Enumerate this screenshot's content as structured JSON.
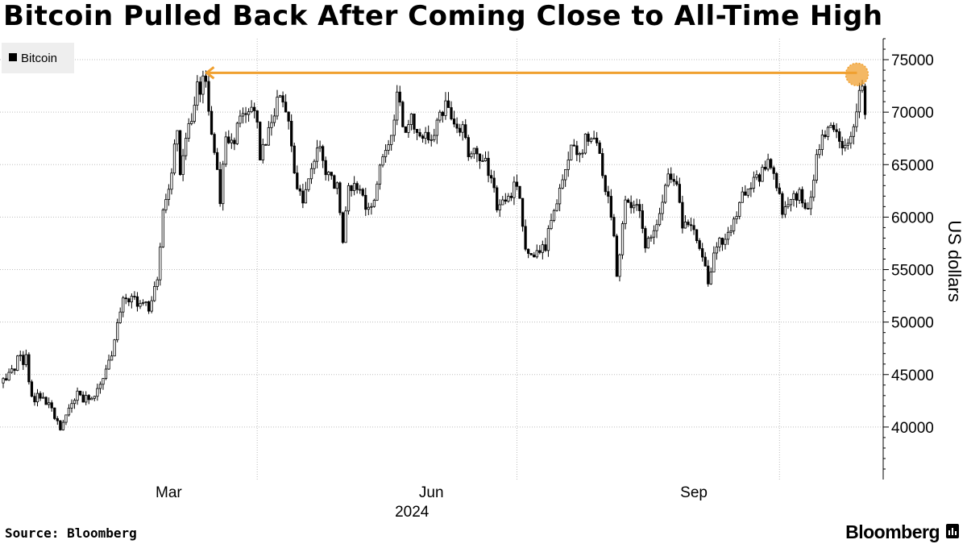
{
  "title": "Bitcoin Pulled Back After Coming Close to All-Time High",
  "source": "Source: Bloomberg",
  "brand": "Bloomberg",
  "colors": {
    "candle": "#000000",
    "annotation": "#f0a030",
    "grid": "#bdbdbd",
    "legend_bg": "#eeeeee"
  },
  "chart_data": {
    "type": "candlestick",
    "title": "Bitcoin Pulled Back After Coming Close to All-Time High",
    "legend": [
      "Bitcoin"
    ],
    "legend_position": "top-left",
    "ylabel": "US dollars",
    "y_axis_side": "right",
    "ylim": [
      35000,
      77000
    ],
    "yticks": [
      "40000",
      "45000",
      "50000",
      "55000",
      "60000",
      "65000",
      "70000",
      "75000"
    ],
    "x_start": "2024-01-03",
    "x_end": "2024-10-30",
    "xticks": [
      {
        "date": "2024-03-01",
        "label": "Mar"
      },
      {
        "date": "2024-06-01",
        "label": "Jun"
      },
      {
        "date": "2024-09-01",
        "label": "Sep"
      }
    ],
    "xgrid_dates": [
      "2024-04-01",
      "2024-07-01",
      "2024-10-01"
    ],
    "year_label": "2024",
    "grid": true,
    "series": [
      {
        "name": "Bitcoin",
        "points": [
          [
            "2024-01-03",
            44200
          ],
          [
            "2024-01-08",
            46300
          ],
          [
            "2024-01-11",
            46500
          ],
          [
            "2024-01-13",
            42800
          ],
          [
            "2024-01-17",
            42700
          ],
          [
            "2024-01-20",
            41700
          ],
          [
            "2024-01-23",
            39500
          ],
          [
            "2024-01-26",
            41800
          ],
          [
            "2024-01-29",
            43300
          ],
          [
            "2024-02-01",
            42600
          ],
          [
            "2024-02-04",
            42600
          ],
          [
            "2024-02-08",
            45300
          ],
          [
            "2024-02-10",
            47100
          ],
          [
            "2024-02-14",
            51800
          ],
          [
            "2024-02-18",
            52100
          ],
          [
            "2024-02-21",
            51300
          ],
          [
            "2024-02-24",
            51700
          ],
          [
            "2024-02-26",
            54500
          ],
          [
            "2024-02-28",
            61000
          ],
          [
            "2024-03-01",
            62400
          ],
          [
            "2024-03-04",
            68300
          ],
          [
            "2024-03-05",
            63800
          ],
          [
            "2024-03-08",
            68300
          ],
          [
            "2024-03-11",
            72100
          ],
          [
            "2024-03-14",
            73100
          ],
          [
            "2024-03-16",
            68400
          ],
          [
            "2024-03-19",
            61900
          ],
          [
            "2024-03-21",
            67900
          ],
          [
            "2024-03-24",
            67200
          ],
          [
            "2024-03-26",
            69900
          ],
          [
            "2024-03-29",
            69900
          ],
          [
            "2024-04-01",
            69700
          ],
          [
            "2024-04-02",
            65500
          ],
          [
            "2024-04-05",
            67800
          ],
          [
            "2024-04-08",
            71700
          ],
          [
            "2024-04-11",
            70000
          ],
          [
            "2024-04-13",
            67100
          ],
          [
            "2024-04-14",
            63900
          ],
          [
            "2024-04-17",
            61300
          ],
          [
            "2024-04-20",
            64900
          ],
          [
            "2024-04-23",
            66400
          ],
          [
            "2024-04-26",
            63800
          ],
          [
            "2024-04-29",
            63100
          ],
          [
            "2024-05-01",
            57600
          ],
          [
            "2024-05-03",
            62900
          ],
          [
            "2024-05-06",
            63200
          ],
          [
            "2024-05-10",
            60800
          ],
          [
            "2024-05-13",
            62900
          ],
          [
            "2024-05-15",
            66200
          ],
          [
            "2024-05-17",
            67000
          ],
          [
            "2024-05-20",
            71400
          ],
          [
            "2024-05-23",
            67800
          ],
          [
            "2024-05-25",
            69300
          ],
          [
            "2024-05-28",
            68300
          ],
          [
            "2024-05-31",
            67500
          ],
          [
            "2024-06-03",
            68800
          ],
          [
            "2024-06-06",
            71100
          ],
          [
            "2024-06-08",
            69300
          ],
          [
            "2024-06-12",
            68200
          ],
          [
            "2024-06-14",
            66200
          ],
          [
            "2024-06-17",
            66500
          ],
          [
            "2024-06-20",
            64900
          ],
          [
            "2024-06-23",
            63200
          ],
          [
            "2024-06-24",
            60300
          ],
          [
            "2024-06-27",
            61600
          ],
          [
            "2024-06-30",
            62700
          ],
          [
            "2024-07-02",
            62100
          ],
          [
            "2024-07-04",
            57000
          ],
          [
            "2024-07-05",
            56700
          ],
          [
            "2024-07-08",
            56800
          ],
          [
            "2024-07-11",
            57300
          ],
          [
            "2024-07-14",
            60800
          ],
          [
            "2024-07-17",
            64100
          ],
          [
            "2024-07-20",
            67100
          ],
          [
            "2024-07-23",
            65900
          ],
          [
            "2024-07-26",
            67900
          ],
          [
            "2024-07-29",
            66800
          ],
          [
            "2024-07-31",
            64600
          ],
          [
            "2024-08-02",
            61400
          ],
          [
            "2024-08-04",
            58100
          ],
          [
            "2024-08-05",
            54000
          ],
          [
            "2024-08-06",
            56000
          ],
          [
            "2024-08-08",
            61700
          ],
          [
            "2024-08-10",
            60900
          ],
          [
            "2024-08-13",
            60600
          ],
          [
            "2024-08-15",
            57600
          ],
          [
            "2024-08-18",
            58400
          ],
          [
            "2024-08-21",
            61200
          ],
          [
            "2024-08-23",
            64100
          ],
          [
            "2024-08-26",
            62900
          ],
          [
            "2024-08-28",
            59000
          ],
          [
            "2024-08-31",
            58900
          ],
          [
            "2024-09-03",
            57500
          ],
          [
            "2024-09-06",
            53900
          ],
          [
            "2024-09-09",
            57000
          ],
          [
            "2024-09-12",
            58100
          ],
          [
            "2024-09-15",
            59200
          ],
          [
            "2024-09-18",
            61800
          ],
          [
            "2024-09-21",
            63200
          ],
          [
            "2024-09-24",
            64100
          ],
          [
            "2024-09-27",
            65800
          ],
          [
            "2024-09-30",
            63300
          ],
          [
            "2024-10-02",
            60600
          ],
          [
            "2024-10-05",
            62100
          ],
          [
            "2024-10-08",
            62200
          ],
          [
            "2024-10-10",
            60300
          ],
          [
            "2024-10-12",
            62500
          ],
          [
            "2024-10-14",
            65800
          ],
          [
            "2024-10-16",
            67600
          ],
          [
            "2024-10-19",
            68400
          ],
          [
            "2024-10-21",
            67400
          ],
          [
            "2024-10-23",
            66700
          ],
          [
            "2024-10-25",
            66600
          ],
          [
            "2024-10-28",
            69900
          ],
          [
            "2024-10-29",
            72700
          ],
          [
            "2024-10-30",
            72300
          ],
          [
            "2024-10-31",
            70200
          ]
        ]
      }
    ],
    "annotation": {
      "type": "arrow",
      "value": 73750,
      "from_date": "2024-10-29",
      "to_date": "2024-03-14",
      "marker": "circle"
    }
  }
}
